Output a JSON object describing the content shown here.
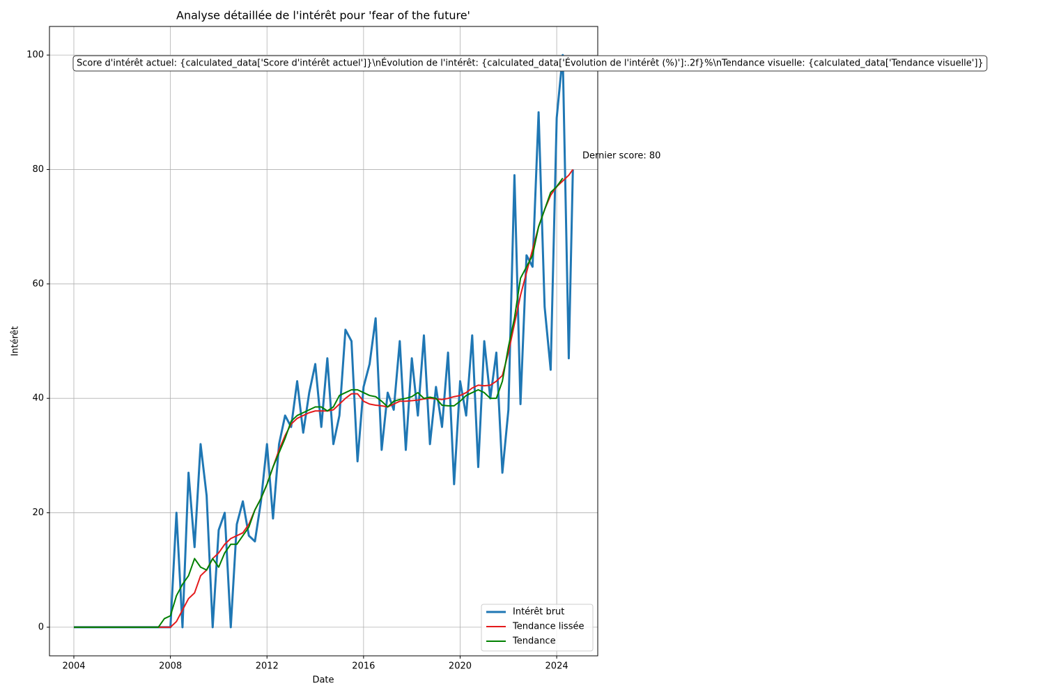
{
  "chart_data": {
    "type": "line",
    "title": "Analyse détaillée de l'intérêt pour 'fear of the future'",
    "xlabel": "Date",
    "ylabel": "Intérêt",
    "annotation_box": "Score d'intérêt actuel: {calculated_data['Score d'intérêt actuel']}\\nÉvolution de l'intérêt: {calculated_data['Évolution de l'intérêt (%)']:.2f}%\\nTendance visuelle: {calculated_data['Tendance visuelle']}",
    "annotation_last": "Dernier score: 80",
    "x": [
      2004,
      2004.25,
      2004.5,
      2004.75,
      2005,
      2005.25,
      2005.5,
      2005.75,
      2006,
      2006.25,
      2006.5,
      2006.75,
      2007,
      2007.25,
      2007.5,
      2007.75,
      2008,
      2008.25,
      2008.5,
      2008.75,
      2009,
      2009.25,
      2009.5,
      2009.75,
      2010,
      2010.25,
      2010.5,
      2010.75,
      2011,
      2011.25,
      2011.5,
      2011.75,
      2012,
      2012.25,
      2012.5,
      2012.75,
      2013,
      2013.25,
      2013.5,
      2013.75,
      2014,
      2014.25,
      2014.5,
      2014.75,
      2015,
      2015.25,
      2015.5,
      2015.75,
      2016,
      2016.25,
      2016.5,
      2016.75,
      2017,
      2017.25,
      2017.5,
      2017.75,
      2018,
      2018.25,
      2018.5,
      2018.75,
      2019,
      2019.25,
      2019.5,
      2019.75,
      2020,
      2020.25,
      2020.5,
      2020.75,
      2021,
      2021.25,
      2021.5,
      2021.75,
      2022,
      2022.25,
      2022.5,
      2022.75,
      2023,
      2023.25,
      2023.5,
      2023.75,
      2024,
      2024.25,
      2024.5,
      2024.67
    ],
    "series": [
      {
        "name": "Intérêt brut",
        "color": "#1f77b4",
        "width": 3,
        "values": [
          0,
          0,
          0,
          0,
          0,
          0,
          0,
          0,
          0,
          0,
          0,
          0,
          0,
          0,
          0,
          0,
          0,
          20,
          0,
          27,
          14,
          32,
          23,
          0,
          17,
          20,
          0,
          18,
          22,
          16,
          15,
          22,
          32,
          19,
          32,
          37,
          35,
          43,
          34,
          41,
          46,
          35,
          47,
          32,
          37,
          52,
          50,
          29,
          42,
          46,
          54,
          31,
          41,
          38,
          50,
          31,
          47,
          37,
          51,
          32,
          42,
          35,
          48,
          25,
          43,
          37,
          51,
          28,
          50,
          40,
          48,
          27,
          38,
          79,
          39,
          65,
          63,
          90,
          56,
          45,
          89,
          100,
          47,
          80
        ]
      },
      {
        "name": "Tendance lissée",
        "color": "#e41a1c",
        "width": 2,
        "values": [
          0,
          0,
          0,
          0,
          0,
          0,
          0,
          0,
          0,
          0,
          0,
          0,
          0,
          0,
          0,
          0,
          0,
          1,
          3,
          5,
          6,
          9,
          10,
          12,
          13,
          14.5,
          15.5,
          16,
          16.5,
          18,
          20.5,
          22.5,
          25,
          28,
          31,
          33.5,
          35.5,
          36.5,
          37,
          37.5,
          37.8,
          37.8,
          37.8,
          38,
          39,
          40,
          40.8,
          40.8,
          39.5,
          39,
          38.8,
          38.7,
          38.5,
          39,
          39.5,
          39.5,
          39.6,
          39.7,
          39.9,
          40,
          39.9,
          39.8,
          40,
          40.3,
          40.5,
          41,
          41.8,
          42.3,
          42.2,
          42.3,
          43,
          44,
          48,
          53,
          58,
          62,
          66,
          70,
          73,
          75.5,
          77,
          78,
          79,
          80
        ]
      },
      {
        "name": "Tendance",
        "color": "#008000",
        "width": 2,
        "values": [
          0,
          0,
          0,
          0,
          0,
          0,
          0,
          0,
          0,
          0,
          0,
          0,
          0,
          0,
          0,
          1.5,
          2,
          5.5,
          7.5,
          9,
          12,
          10.5,
          10,
          12,
          10.5,
          13,
          14.5,
          14.5,
          16,
          17.5,
          20.5,
          22.5,
          25,
          28,
          30.5,
          33,
          36,
          37,
          37.5,
          38,
          38.5,
          38.5,
          37.8,
          38.5,
          40.5,
          41,
          41.5,
          41.5,
          41,
          40.5,
          40.3,
          39.5,
          38.5,
          39.5,
          39.8,
          40,
          40.3,
          41,
          40,
          40.2,
          40,
          38.8,
          38.7,
          38.7,
          39.5,
          40.5,
          41,
          41.5,
          41,
          40,
          40,
          43,
          49,
          54,
          61,
          63,
          65,
          70,
          73,
          76,
          77,
          78.5,
          null,
          null
        ]
      }
    ],
    "xlim": [
      2002.99,
      2025.7
    ],
    "xticks": [
      2004,
      2008,
      2012,
      2016,
      2020,
      2024
    ],
    "ylim": [
      -5,
      105
    ],
    "yticks": [
      0,
      20,
      40,
      60,
      80,
      100
    ],
    "grid": true,
    "legend": "lower right"
  }
}
